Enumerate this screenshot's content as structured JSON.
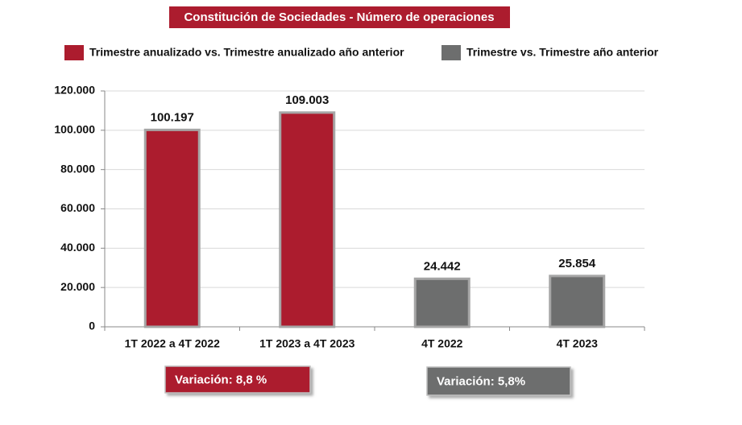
{
  "chart_data": {
    "type": "bar",
    "title": "Constitución de Sociedades - Número de operaciones",
    "title_color": "#ac1c2e",
    "categories": [
      "1T 2022 a 4T 2022",
      "1T 2023 a 4T 2023",
      "4T 2022",
      "4T 2023"
    ],
    "series": [
      {
        "name": "Trimestre anualizado vs. Trimestre anualizado año anterior",
        "color": "#ac1c2e",
        "values": [
          100197,
          109003,
          null,
          null
        ],
        "value_labels": [
          "100.197",
          "109.003",
          null,
          null
        ]
      },
      {
        "name": "Trimestre vs. Trimestre año anterior",
        "color": "#6d6e6e",
        "values": [
          null,
          null,
          24442,
          25854
        ],
        "value_labels": [
          null,
          null,
          "24.442",
          "25.854"
        ]
      }
    ],
    "ylim": [
      0,
      120000
    ],
    "yticks": [
      0,
      {
        "value": 20000,
        "label": "20.000"
      },
      {
        "value": 40000,
        "label": "40.000"
      },
      {
        "value": 60000,
        "label": "60.000"
      },
      {
        "value": 80000,
        "label": "80.000"
      },
      {
        "value": 100000,
        "label": "100.000"
      },
      {
        "value": 120000,
        "label": "120.000"
      }
    ],
    "grid": true,
    "legend": "top",
    "annotations": [
      {
        "text": "Variación:  8,8 %",
        "color": "#ac1c2e"
      },
      {
        "text": "Variación: 5,8%",
        "color": "#6d6e6e"
      }
    ]
  }
}
